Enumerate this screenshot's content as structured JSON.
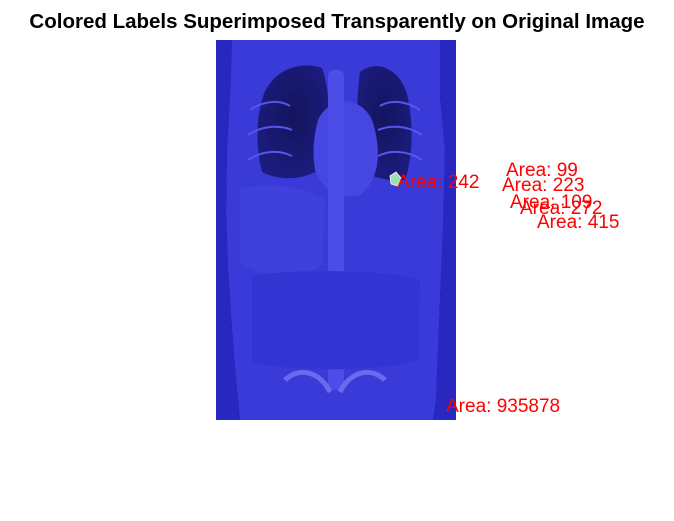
{
  "figure": {
    "title": "Colored Labels Superimposed Transparently on Original Image"
  },
  "colors": {
    "label_text": "#ff0000",
    "background_overlay": "#0000a8",
    "body_overlay": "#3a3ad8"
  },
  "region_labels": [
    {
      "text": "Area: 242"
    },
    {
      "text": "Area: 99"
    },
    {
      "text": "Area: 223"
    },
    {
      "text": "Area: 109"
    },
    {
      "text": "Area: 272"
    },
    {
      "text": "Area: 415"
    },
    {
      "text": "Area: 935878"
    }
  ]
}
